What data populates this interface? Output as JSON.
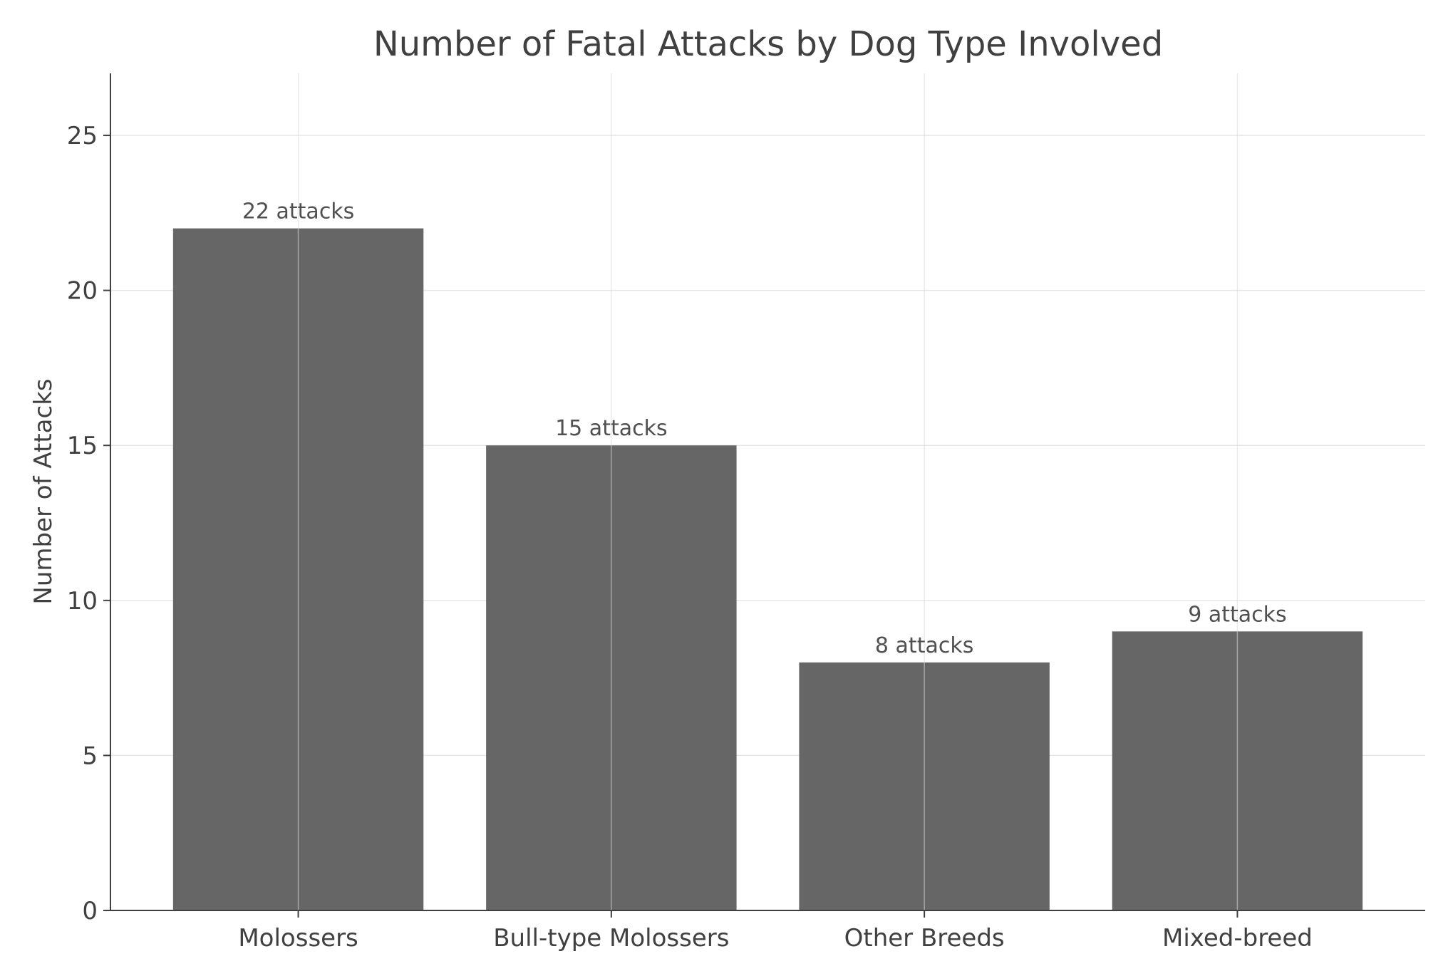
{
  "chart_data": {
    "type": "bar",
    "title": "Number of Fatal Attacks by Dog Type Involved",
    "xlabel": "",
    "ylabel": "Number of Attacks",
    "categories": [
      "Molossers",
      "Bull-type Molossers",
      "Other Breeds",
      "Mixed-breed"
    ],
    "values": [
      22,
      15,
      8,
      9
    ],
    "data_labels": [
      "22 attacks",
      "15 attacks",
      "8 attacks",
      "9 attacks"
    ],
    "ylim": [
      0,
      27
    ],
    "yticks": [
      0,
      5,
      10,
      15,
      20,
      25
    ],
    "ytick_labels": [
      "0",
      "5",
      "10",
      "15",
      "20",
      "25"
    ],
    "grid": true,
    "legend": "none",
    "colors": {
      "bar": "#666666",
      "axis": "#404040",
      "grid": "#e6e6e6",
      "text": "#404040"
    }
  }
}
